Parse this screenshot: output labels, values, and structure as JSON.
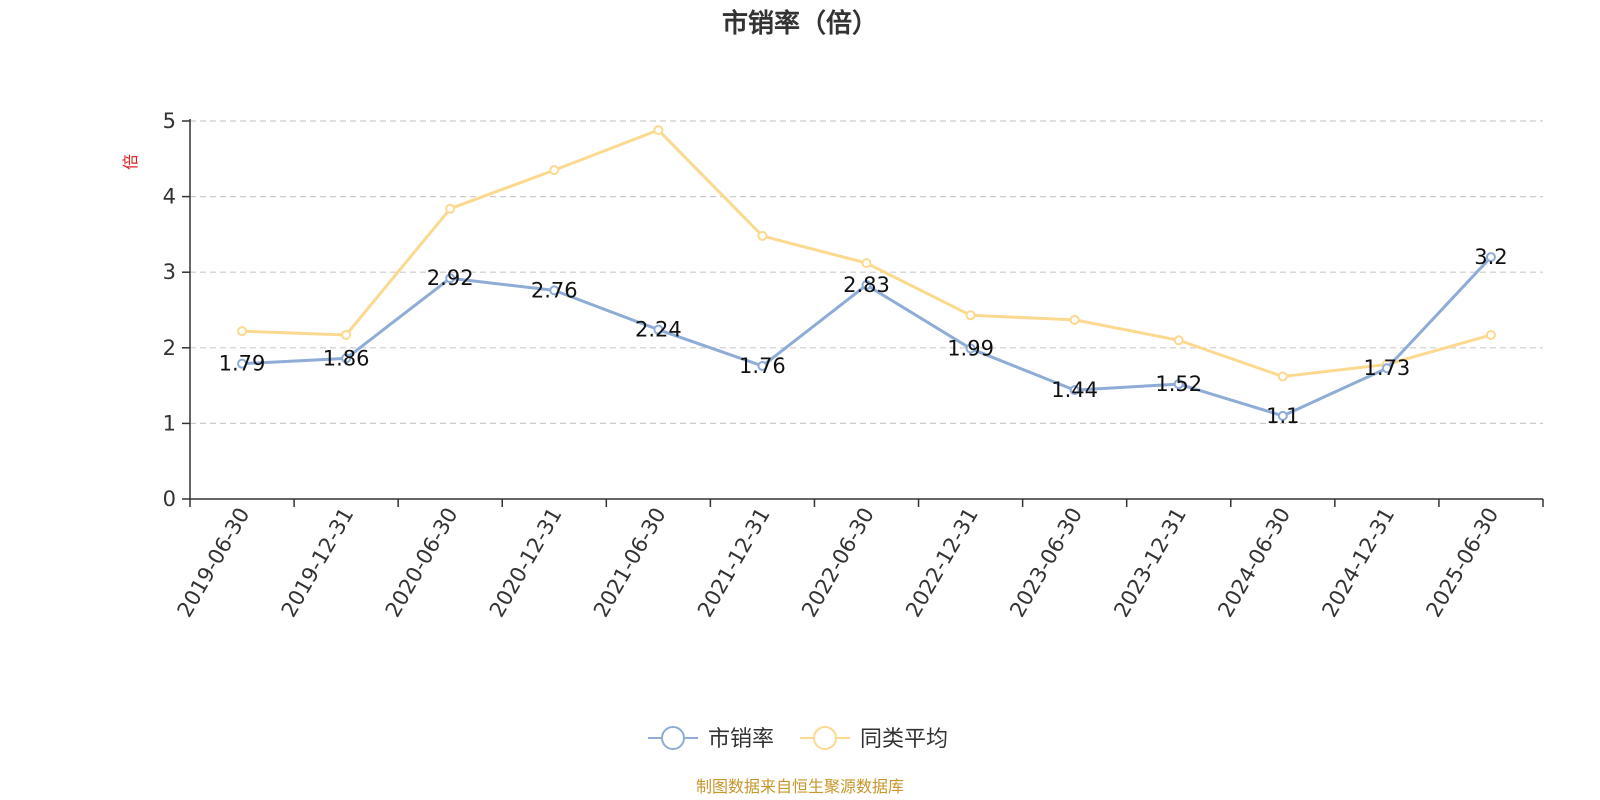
{
  "chart_data": {
    "type": "line",
    "title": "市销率（倍）",
    "ylabel": "倍",
    "ylim": [
      0,
      5
    ],
    "yticks": [
      0,
      1,
      2,
      3,
      4,
      5
    ],
    "grid": true,
    "legend_position": "bottom-center",
    "categories": [
      "2019-06-30",
      "2019-12-31",
      "2020-06-30",
      "2020-12-31",
      "2021-06-30",
      "2021-12-31",
      "2022-06-30",
      "2022-12-31",
      "2023-06-30",
      "2023-12-31",
      "2024-06-30",
      "2024-12-31",
      "2025-06-30"
    ],
    "series": [
      {
        "name": "市销率",
        "color": "#8eacd6",
        "show_labels": true,
        "values": [
          1.79,
          1.86,
          2.92,
          2.76,
          2.24,
          1.76,
          2.83,
          1.99,
          1.44,
          1.52,
          1.1,
          1.73,
          3.2
        ]
      },
      {
        "name": "同类平均",
        "color": "#fbd98f",
        "show_labels": false,
        "values": [
          2.22,
          2.17,
          3.84,
          4.35,
          4.88,
          3.48,
          3.12,
          2.43,
          2.37,
          2.1,
          1.62,
          1.78,
          2.17
        ]
      }
    ]
  },
  "source_text": "制图数据来自恒生聚源数据库",
  "colors": {
    "ylabel": "#e02020",
    "source": "#c8962a",
    "axis": "#333333",
    "grid": "#cccccc"
  }
}
